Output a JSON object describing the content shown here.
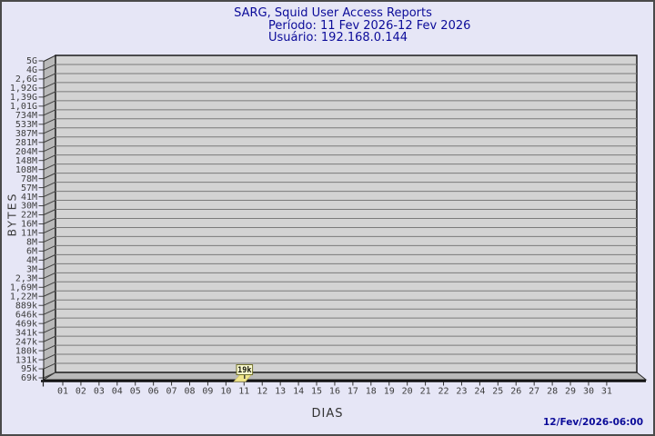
{
  "header": {
    "title": "SARG, Squid User Access Reports",
    "period_line": "Período: 11 Fev 2026-12 Fev 2026",
    "user_line": "Usuário: 192.168.0.144"
  },
  "footer": {
    "generated_at": "12/Fev/2026-06:00"
  },
  "chart_data": {
    "type": "bar",
    "title": "SARG, Squid User Access Reports",
    "subtitle": [
      "Período: 11 Fev 2026-12 Fev 2026",
      "Usuário: 192.168.0.144"
    ],
    "xlabel": "DIAS",
    "ylabel": "BYTES",
    "x_categories": [
      "01",
      "02",
      "03",
      "04",
      "05",
      "06",
      "07",
      "08",
      "09",
      "10",
      "11",
      "12",
      "13",
      "14",
      "15",
      "16",
      "17",
      "18",
      "19",
      "20",
      "21",
      "22",
      "23",
      "24",
      "25",
      "26",
      "27",
      "28",
      "29",
      "30",
      "31"
    ],
    "y_tick_labels": [
      "5G",
      "4G",
      "2,6G",
      "1,92G",
      "1,39G",
      "1,01G",
      "734M",
      "533M",
      "387M",
      "281M",
      "204M",
      "148M",
      "108M",
      "78M",
      "57M",
      "41M",
      "30M",
      "22M",
      "16M",
      "11M",
      "8M",
      "6M",
      "4M",
      "3M",
      "2,3M",
      "1,69M",
      "1,22M",
      "889k",
      "646k",
      "469k",
      "341k",
      "247k",
      "180k",
      "131k",
      "95k",
      "69k"
    ],
    "bars": [
      {
        "x": "11",
        "value_label": "19k",
        "value_bytes_approx": 19000
      }
    ],
    "grid": true,
    "legend": null,
    "layout_hints": {
      "y_axis": "nonlinear byte scale, top 5G to bottom 69k",
      "x_range": "days 01-31",
      "style": "3D slab, left wall and floor"
    },
    "colors": {
      "page_bg": "#e6e6f6",
      "plot_bg": "#d3d3d3",
      "grid_line": "#7a7a7a",
      "wall": "#b9b9b9",
      "bar": "#f0e68c",
      "bar_edge": "#cdc06a",
      "callout_bg": "#fbfbcf",
      "callout_border": "#72722c",
      "title_text": "#0b0b99",
      "tick_text": "#3d3d3d"
    }
  }
}
